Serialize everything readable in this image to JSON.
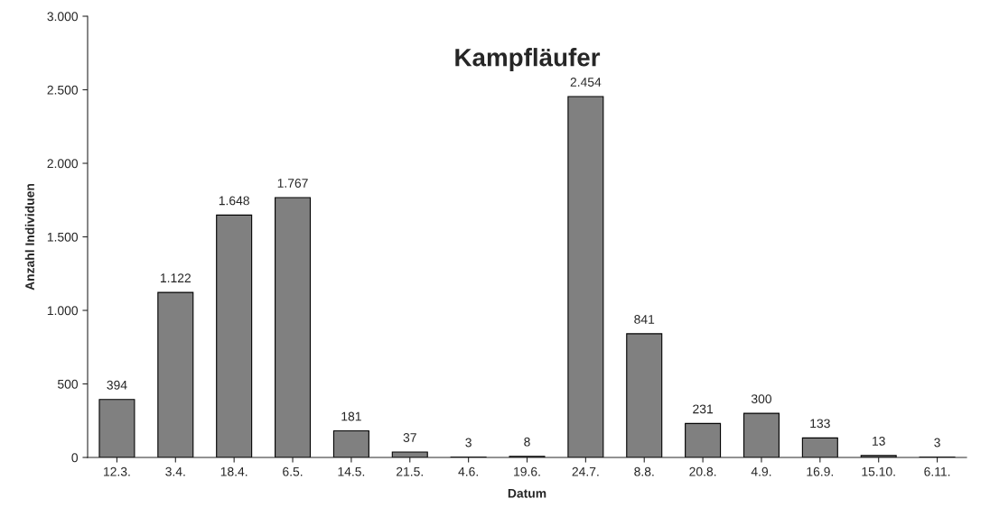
{
  "chart_data": {
    "type": "bar",
    "title": "Kampfläufer",
    "xlabel": "Datum",
    "ylabel": "Anzahl Individuen",
    "categories": [
      "12.3.",
      "3.4.",
      "18.4.",
      "6.5.",
      "14.5.",
      "21.5.",
      "4.6.",
      "19.6.",
      "24.7.",
      "8.8.",
      "20.8.",
      "4.9.",
      "16.9.",
      "15.10.",
      "6.11."
    ],
    "values": [
      394,
      1122,
      1648,
      1767,
      181,
      37,
      3,
      8,
      2454,
      841,
      231,
      300,
      133,
      13,
      3
    ],
    "value_labels": [
      "394",
      "1.122",
      "1.648",
      "1.767",
      "181",
      "37",
      "3",
      "8",
      "2.454",
      "841",
      "231",
      "300",
      "133",
      "13",
      "3"
    ],
    "color": "#808080",
    "ylim": [
      0,
      3000
    ],
    "yticks": [
      0,
      500,
      {
        "value": 1000,
        "label": "1.000"
      },
      {
        "value": 1500,
        "label": "1.500"
      },
      {
        "value": 2000,
        "label": "2.000"
      },
      {
        "value": 2500,
        "label": "2.500"
      },
      {
        "value": 3000,
        "label": "3.000"
      }
    ],
    "grid": false,
    "legend": false
  }
}
